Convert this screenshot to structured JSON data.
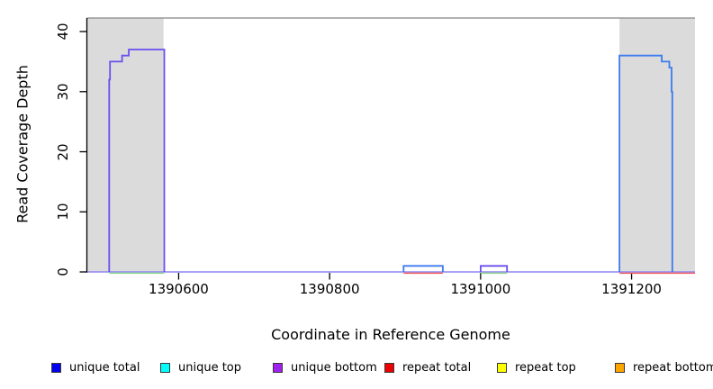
{
  "chart_data": {
    "type": "line",
    "subtype": "step-coverage",
    "title": "",
    "xlabel": "Coordinate in Reference Genome",
    "ylabel": "Read Coverage Depth",
    "xlim": [
      1390479,
      1391284
    ],
    "ylim": [
      0,
      42.25
    ],
    "x_ticks": [
      1390600,
      1390800,
      1391000,
      1391200
    ],
    "y_ticks": [
      0,
      10,
      20,
      30,
      40
    ],
    "grid": false,
    "legend_position": "bottom",
    "axis_color": "#000000",
    "frame_top_color": "#999999",
    "shaded_regions": {
      "color": "#dbdbdb",
      "ranges": [
        [
          1390479,
          1390580
        ],
        [
          1391184,
          1391284
        ]
      ]
    },
    "steps_format": "each entry [x_start, value]; value holds until next x_start; value is 0 from xlim start and after last entry",
    "series": [
      {
        "name": "unique total",
        "color": "#0000ee",
        "steps": [
          [
            1390508,
            32
          ],
          [
            1390509,
            35
          ],
          [
            1390525,
            36
          ],
          [
            1390534,
            37
          ],
          [
            1390581,
            0
          ],
          [
            1390898,
            1
          ],
          [
            1390950,
            0
          ],
          [
            1391000,
            1
          ],
          [
            1391035,
            0
          ],
          [
            1391184,
            36
          ],
          [
            1391240,
            35
          ],
          [
            1391250,
            34
          ],
          [
            1391253,
            30
          ],
          [
            1391254,
            0
          ]
        ]
      },
      {
        "name": "unique top",
        "color": "#00ffff",
        "steps": [
          [
            1390898,
            1
          ],
          [
            1390950,
            0
          ],
          [
            1391184,
            36
          ],
          [
            1391240,
            35
          ],
          [
            1391250,
            34
          ],
          [
            1391253,
            30
          ],
          [
            1391254,
            0
          ]
        ]
      },
      {
        "name": "unique bottom",
        "color": "#a020f0",
        "steps": [
          [
            1390508,
            32
          ],
          [
            1390509,
            35
          ],
          [
            1390525,
            36
          ],
          [
            1390534,
            37
          ],
          [
            1390581,
            0
          ],
          [
            1391000,
            1
          ],
          [
            1391035,
            0
          ]
        ]
      },
      {
        "name": "repeat total",
        "color": "#ee0000",
        "steps": []
      },
      {
        "name": "repeat top",
        "color": "#ffff00",
        "steps": []
      },
      {
        "name": "repeat bottom",
        "color": "#ffa500",
        "steps": []
      }
    ],
    "rendered_lines": [
      {
        "name": "baseline-overlap",
        "color": "#8f86f2",
        "width": 1.5,
        "dy": 0,
        "points": [
          [
            1390479,
            0
          ],
          [
            1391284,
            0
          ]
        ]
      },
      {
        "name": "green-underline-left-block",
        "color": "#90d890",
        "width": 1.5,
        "dy": 1.4,
        "points": [
          [
            1390508,
            0
          ],
          [
            1390581,
            0
          ]
        ]
      },
      {
        "name": "green-underline-bump2",
        "color": "#90d890",
        "width": 1.5,
        "dy": 1.4,
        "points": [
          [
            1391000,
            0
          ],
          [
            1391035,
            0
          ]
        ]
      },
      {
        "name": "red-underline-bump1",
        "color": "#f06060",
        "width": 1.5,
        "dy": 1.4,
        "points": [
          [
            1390898,
            0
          ],
          [
            1390950,
            0
          ]
        ]
      },
      {
        "name": "red-underline-right-block",
        "color": "#f06060",
        "width": 1.5,
        "dy": 1.4,
        "points": [
          [
            1391184,
            0
          ],
          [
            1391284,
            0
          ]
        ]
      },
      {
        "name": "unique-bottom-strand-block-left",
        "color": "#6a4ff0",
        "width": 1.8,
        "dy": 0,
        "points": [
          [
            1390508,
            0
          ],
          [
            1390508,
            32
          ],
          [
            1390509,
            32
          ],
          [
            1390509,
            35
          ],
          [
            1390525,
            35
          ],
          [
            1390525,
            36
          ],
          [
            1390534,
            36
          ],
          [
            1390534,
            37
          ],
          [
            1390581,
            37
          ],
          [
            1390581,
            0
          ]
        ]
      },
      {
        "name": "unique-bottom-strand-bump2",
        "color": "#6a4ff0",
        "width": 1.8,
        "dy": 0,
        "points": [
          [
            1391000,
            0
          ],
          [
            1391000,
            1
          ],
          [
            1391035,
            1
          ],
          [
            1391035,
            0
          ]
        ]
      },
      {
        "name": "unique-top-strand-bump1",
        "color": "#3d7bf0",
        "width": 1.8,
        "dy": 0,
        "points": [
          [
            1390898,
            0
          ],
          [
            1390898,
            1
          ],
          [
            1390950,
            1
          ],
          [
            1390950,
            0
          ]
        ]
      },
      {
        "name": "unique-top-strand-block-right",
        "color": "#3d7bf0",
        "width": 1.8,
        "dy": 0,
        "points": [
          [
            1391184,
            0
          ],
          [
            1391184,
            36
          ],
          [
            1391240,
            36
          ],
          [
            1391240,
            35
          ],
          [
            1391250,
            35
          ],
          [
            1391250,
            34
          ],
          [
            1391253,
            34
          ],
          [
            1391253,
            30
          ],
          [
            1391254,
            30
          ],
          [
            1391254,
            0
          ]
        ]
      }
    ]
  },
  "legend": {
    "items": [
      {
        "label": "unique total",
        "color": "#0000ee"
      },
      {
        "label": "unique top",
        "color": "#00ffff"
      },
      {
        "label": "unique bottom",
        "color": "#a020f0"
      },
      {
        "label": "repeat total",
        "color": "#ee0000"
      },
      {
        "label": "repeat top",
        "color": "#ffff00"
      },
      {
        "label": "repeat bottom",
        "color": "#ffa500"
      }
    ]
  }
}
